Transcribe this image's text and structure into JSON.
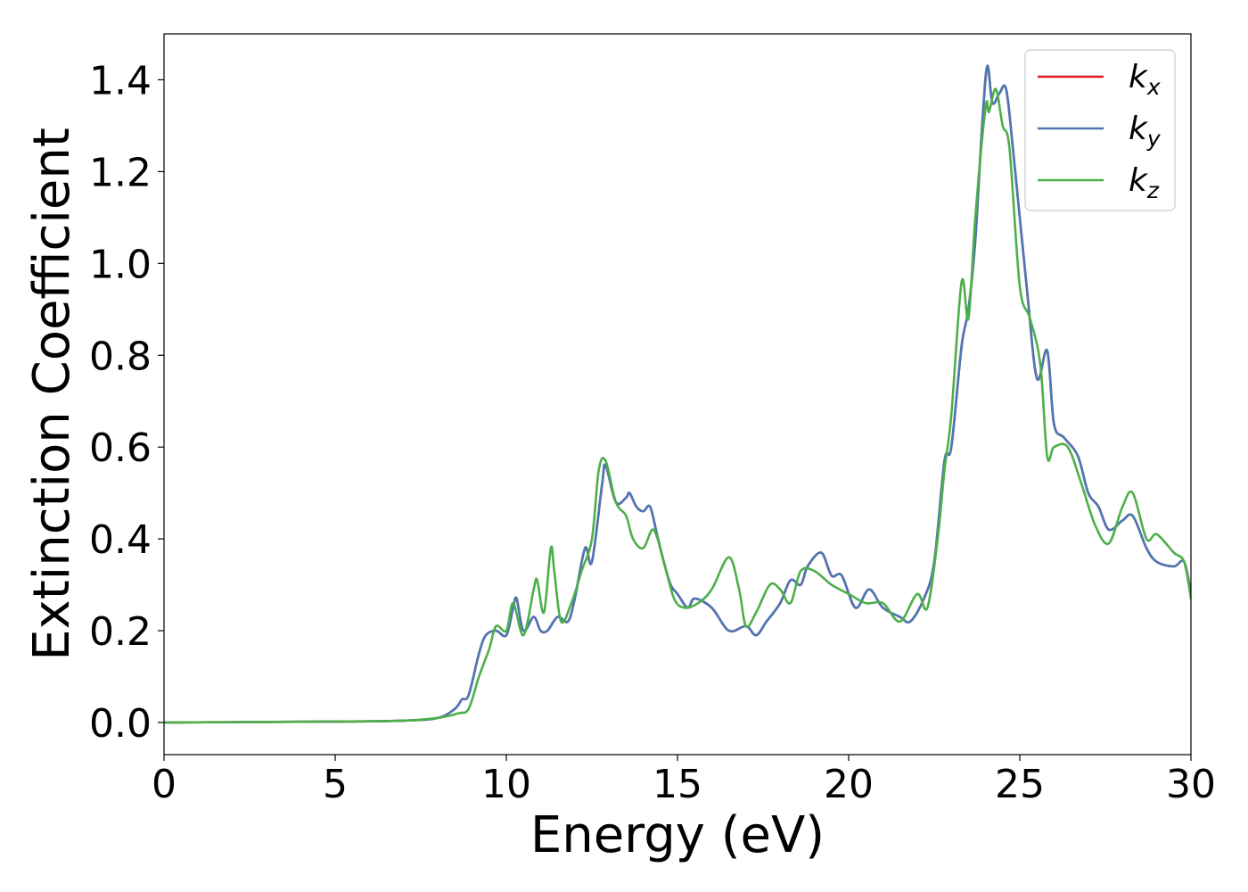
{
  "chart_data": {
    "type": "line",
    "title": "",
    "xlabel": "Energy (eV)",
    "ylabel": "Extinction Coefficient",
    "xlim": [
      0,
      30
    ],
    "ylim": [
      -0.07,
      1.5
    ],
    "xticks": [
      0,
      5,
      10,
      15,
      20,
      25,
      30
    ],
    "xtick_labels": [
      "0",
      "5",
      "10",
      "15",
      "20",
      "25",
      "30"
    ],
    "yticks": [
      0.0,
      0.2,
      0.4,
      0.6,
      0.8,
      1.0,
      1.2,
      1.4
    ],
    "ytick_labels": [
      "0.0",
      "0.2",
      "0.4",
      "0.6",
      "0.8",
      "1.0",
      "1.2",
      "1.4"
    ],
    "grid": false,
    "legend_position": "top-right",
    "series": [
      {
        "name": "kx",
        "legend_base": "k",
        "legend_sub": "x",
        "color": "#e41a1c",
        "points": [
          [
            0,
            0
          ],
          [
            5,
            0.002
          ],
          [
            7,
            0.004
          ],
          [
            8,
            0.01
          ],
          [
            8.5,
            0.03
          ],
          [
            8.7,
            0.05
          ],
          [
            8.9,
            0.06
          ],
          [
            9.2,
            0.15
          ],
          [
            9.4,
            0.19
          ],
          [
            9.7,
            0.2
          ],
          [
            10,
            0.19
          ],
          [
            10.2,
            0.25
          ],
          [
            10.3,
            0.27
          ],
          [
            10.5,
            0.2
          ],
          [
            10.8,
            0.23
          ],
          [
            11,
            0.2
          ],
          [
            11.2,
            0.2
          ],
          [
            11.5,
            0.23
          ],
          [
            11.8,
            0.22
          ],
          [
            12,
            0.27
          ],
          [
            12.3,
            0.38
          ],
          [
            12.5,
            0.35
          ],
          [
            12.8,
            0.52
          ],
          [
            12.9,
            0.56
          ],
          [
            13.2,
            0.48
          ],
          [
            13.5,
            0.49
          ],
          [
            13.6,
            0.5
          ],
          [
            13.8,
            0.47
          ],
          [
            14,
            0.46
          ],
          [
            14.2,
            0.47
          ],
          [
            14.4,
            0.41
          ],
          [
            14.6,
            0.35
          ],
          [
            14.8,
            0.3
          ],
          [
            15,
            0.28
          ],
          [
            15.3,
            0.25
          ],
          [
            15.5,
            0.27
          ],
          [
            16,
            0.25
          ],
          [
            16.5,
            0.2
          ],
          [
            17,
            0.21
          ],
          [
            17.3,
            0.19
          ],
          [
            17.6,
            0.22
          ],
          [
            18,
            0.26
          ],
          [
            18.3,
            0.31
          ],
          [
            18.6,
            0.3
          ],
          [
            18.8,
            0.34
          ],
          [
            19.2,
            0.37
          ],
          [
            19.5,
            0.32
          ],
          [
            19.8,
            0.32
          ],
          [
            20.2,
            0.25
          ],
          [
            20.6,
            0.29
          ],
          [
            21,
            0.25
          ],
          [
            21.5,
            0.23
          ],
          [
            21.8,
            0.22
          ],
          [
            22.2,
            0.27
          ],
          [
            22.5,
            0.35
          ],
          [
            22.8,
            0.57
          ],
          [
            23,
            0.6
          ],
          [
            23.3,
            0.82
          ],
          [
            23.5,
            0.9
          ],
          [
            23.7,
            1.05
          ],
          [
            23.9,
            1.3
          ],
          [
            24.05,
            1.43
          ],
          [
            24.2,
            1.35
          ],
          [
            24.4,
            1.37
          ],
          [
            24.6,
            1.38
          ],
          [
            24.8,
            1.25
          ],
          [
            25.2,
            0.95
          ],
          [
            25.5,
            0.75
          ],
          [
            25.8,
            0.81
          ],
          [
            26,
            0.65
          ],
          [
            26.3,
            0.62
          ],
          [
            26.7,
            0.58
          ],
          [
            27,
            0.5
          ],
          [
            27.3,
            0.47
          ],
          [
            27.6,
            0.42
          ],
          [
            28,
            0.44
          ],
          [
            28.3,
            0.45
          ],
          [
            28.7,
            0.38
          ],
          [
            29,
            0.35
          ],
          [
            29.5,
            0.34
          ],
          [
            29.8,
            0.35
          ],
          [
            30,
            0.28
          ]
        ]
      },
      {
        "name": "ky",
        "legend_base": "k",
        "legend_sub": "y",
        "color": "#4a78b5",
        "points": [
          [
            0,
            0
          ],
          [
            5,
            0.002
          ],
          [
            7,
            0.004
          ],
          [
            8,
            0.01
          ],
          [
            8.5,
            0.03
          ],
          [
            8.7,
            0.05
          ],
          [
            8.9,
            0.06
          ],
          [
            9.2,
            0.15
          ],
          [
            9.4,
            0.19
          ],
          [
            9.7,
            0.2
          ],
          [
            10,
            0.19
          ],
          [
            10.2,
            0.25
          ],
          [
            10.3,
            0.27
          ],
          [
            10.5,
            0.2
          ],
          [
            10.8,
            0.23
          ],
          [
            11,
            0.2
          ],
          [
            11.2,
            0.2
          ],
          [
            11.5,
            0.23
          ],
          [
            11.8,
            0.22
          ],
          [
            12,
            0.27
          ],
          [
            12.3,
            0.38
          ],
          [
            12.5,
            0.35
          ],
          [
            12.8,
            0.52
          ],
          [
            12.9,
            0.56
          ],
          [
            13.2,
            0.48
          ],
          [
            13.5,
            0.49
          ],
          [
            13.6,
            0.5
          ],
          [
            13.8,
            0.47
          ],
          [
            14,
            0.46
          ],
          [
            14.2,
            0.47
          ],
          [
            14.4,
            0.41
          ],
          [
            14.6,
            0.35
          ],
          [
            14.8,
            0.3
          ],
          [
            15,
            0.28
          ],
          [
            15.3,
            0.25
          ],
          [
            15.5,
            0.27
          ],
          [
            16,
            0.25
          ],
          [
            16.5,
            0.2
          ],
          [
            17,
            0.21
          ],
          [
            17.3,
            0.19
          ],
          [
            17.6,
            0.22
          ],
          [
            18,
            0.26
          ],
          [
            18.3,
            0.31
          ],
          [
            18.6,
            0.3
          ],
          [
            18.8,
            0.34
          ],
          [
            19.2,
            0.37
          ],
          [
            19.5,
            0.32
          ],
          [
            19.8,
            0.32
          ],
          [
            20.2,
            0.25
          ],
          [
            20.6,
            0.29
          ],
          [
            21,
            0.25
          ],
          [
            21.5,
            0.23
          ],
          [
            21.8,
            0.22
          ],
          [
            22.2,
            0.27
          ],
          [
            22.5,
            0.35
          ],
          [
            22.8,
            0.57
          ],
          [
            23,
            0.6
          ],
          [
            23.3,
            0.82
          ],
          [
            23.5,
            0.9
          ],
          [
            23.7,
            1.05
          ],
          [
            23.9,
            1.3
          ],
          [
            24.05,
            1.43
          ],
          [
            24.2,
            1.35
          ],
          [
            24.4,
            1.37
          ],
          [
            24.6,
            1.38
          ],
          [
            24.8,
            1.25
          ],
          [
            25.2,
            0.95
          ],
          [
            25.5,
            0.75
          ],
          [
            25.8,
            0.81
          ],
          [
            26,
            0.65
          ],
          [
            26.3,
            0.62
          ],
          [
            26.7,
            0.58
          ],
          [
            27,
            0.5
          ],
          [
            27.3,
            0.47
          ],
          [
            27.6,
            0.42
          ],
          [
            28,
            0.44
          ],
          [
            28.3,
            0.45
          ],
          [
            28.7,
            0.38
          ],
          [
            29,
            0.35
          ],
          [
            29.5,
            0.34
          ],
          [
            29.8,
            0.35
          ],
          [
            30,
            0.28
          ]
        ]
      },
      {
        "name": "kz",
        "legend_base": "k",
        "legend_sub": "z",
        "color": "#4daf4a",
        "points": [
          [
            0,
            0
          ],
          [
            5,
            0.002
          ],
          [
            7,
            0.004
          ],
          [
            8,
            0.01
          ],
          [
            8.6,
            0.02
          ],
          [
            8.9,
            0.03
          ],
          [
            9.2,
            0.1
          ],
          [
            9.5,
            0.16
          ],
          [
            9.7,
            0.21
          ],
          [
            10,
            0.2
          ],
          [
            10.2,
            0.26
          ],
          [
            10.5,
            0.19
          ],
          [
            10.8,
            0.29
          ],
          [
            10.9,
            0.31
          ],
          [
            11.1,
            0.24
          ],
          [
            11.3,
            0.38
          ],
          [
            11.4,
            0.33
          ],
          [
            11.6,
            0.22
          ],
          [
            11.9,
            0.26
          ],
          [
            12.2,
            0.33
          ],
          [
            12.5,
            0.4
          ],
          [
            12.7,
            0.55
          ],
          [
            12.9,
            0.57
          ],
          [
            13.2,
            0.48
          ],
          [
            13.5,
            0.45
          ],
          [
            13.7,
            0.4
          ],
          [
            14,
            0.38
          ],
          [
            14.3,
            0.42
          ],
          [
            14.6,
            0.35
          ],
          [
            14.9,
            0.27
          ],
          [
            15.2,
            0.25
          ],
          [
            15.6,
            0.26
          ],
          [
            16,
            0.29
          ],
          [
            16.5,
            0.36
          ],
          [
            16.8,
            0.29
          ],
          [
            17,
            0.21
          ],
          [
            17.3,
            0.24
          ],
          [
            17.7,
            0.3
          ],
          [
            18,
            0.29
          ],
          [
            18.3,
            0.26
          ],
          [
            18.6,
            0.33
          ],
          [
            19,
            0.33
          ],
          [
            19.5,
            0.3
          ],
          [
            20,
            0.28
          ],
          [
            20.5,
            0.26
          ],
          [
            21,
            0.26
          ],
          [
            21.5,
            0.22
          ],
          [
            22,
            0.28
          ],
          [
            22.3,
            0.25
          ],
          [
            22.6,
            0.4
          ],
          [
            22.8,
            0.55
          ],
          [
            23,
            0.67
          ],
          [
            23.3,
            0.96
          ],
          [
            23.5,
            0.88
          ],
          [
            23.7,
            1.1
          ],
          [
            24,
            1.34
          ],
          [
            24.1,
            1.33
          ],
          [
            24.3,
            1.38
          ],
          [
            24.5,
            1.3
          ],
          [
            24.7,
            1.25
          ],
          [
            25,
            0.95
          ],
          [
            25.3,
            0.88
          ],
          [
            25.6,
            0.78
          ],
          [
            25.8,
            0.58
          ],
          [
            26,
            0.6
          ],
          [
            26.4,
            0.6
          ],
          [
            26.8,
            0.52
          ],
          [
            27.2,
            0.43
          ],
          [
            27.6,
            0.39
          ],
          [
            28,
            0.47
          ],
          [
            28.3,
            0.5
          ],
          [
            28.7,
            0.4
          ],
          [
            29,
            0.41
          ],
          [
            29.5,
            0.37
          ],
          [
            29.8,
            0.35
          ],
          [
            30,
            0.27
          ]
        ]
      }
    ]
  }
}
